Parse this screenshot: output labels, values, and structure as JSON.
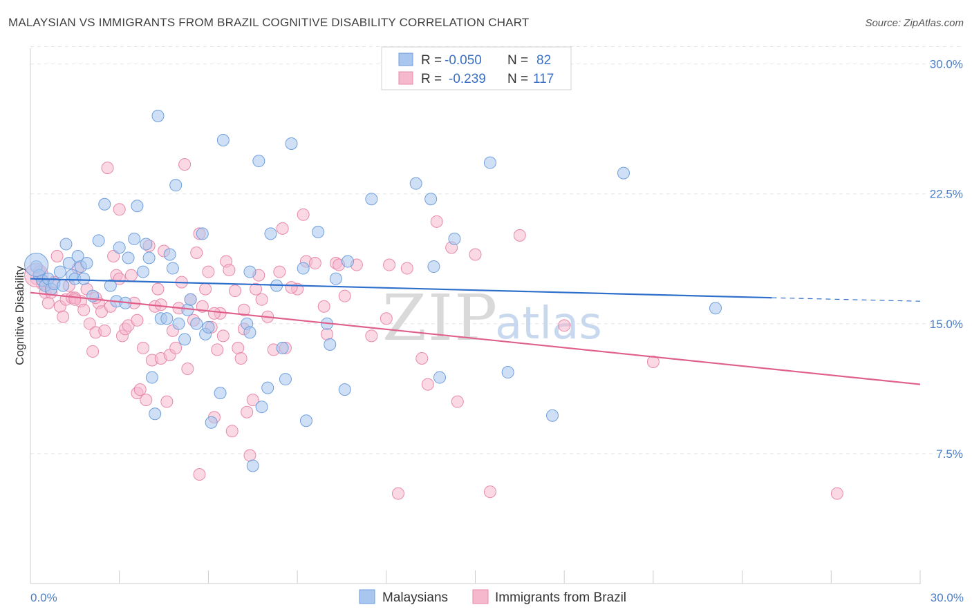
{
  "chart_data": {
    "type": "scatter",
    "title": "MALAYSIAN VS IMMIGRANTS FROM BRAZIL COGNITIVE DISABILITY CORRELATION CHART",
    "source": "Source: ZipAtlas.com",
    "ylabel": "Cognitive Disability",
    "xlim": [
      0,
      30
    ],
    "ylim": [
      0,
      31.5
    ],
    "y_ticks": [
      {
        "value": 7.5,
        "label": "7.5%"
      },
      {
        "value": 15.0,
        "label": "15.0%"
      },
      {
        "value": 22.5,
        "label": "22.5%"
      },
      {
        "value": 30.0,
        "label": "30.0%"
      }
    ],
    "x_tick_labels": {
      "min": "0.0%",
      "max": "30.0%"
    },
    "legend": {
      "series1": {
        "r_label": "R =",
        "r_value": "-0.050",
        "n_label": "N =",
        "n_value": "82"
      },
      "series2": {
        "r_label": "R =",
        "r_value": "-0.239",
        "n_label": "N =",
        "n_value": "117"
      }
    },
    "colors": {
      "blue_fill": "#a8c6ee",
      "blue_stroke": "#6f9fdc",
      "blue_line": "#2f6fcc",
      "pink_fill": "#f5b8cd",
      "pink_stroke": "#e889aa",
      "pink_line": "#e0608c"
    },
    "series": [
      {
        "name": "Malaysians",
        "trend": {
          "x0": 0,
          "y0": 17.6,
          "x1": 25,
          "y1": 16.5,
          "dash_to": 30,
          "dash_y": 16.3
        },
        "points": [
          [
            0.2,
            18.3
          ],
          [
            0.3,
            17.8
          ],
          [
            0.4,
            17.5
          ],
          [
            0.5,
            17.2
          ],
          [
            0.6,
            17.6
          ],
          [
            0.7,
            17.0
          ],
          [
            0.8,
            17.3
          ],
          [
            1.0,
            18.0
          ],
          [
            1.1,
            17.2
          ],
          [
            1.2,
            19.6
          ],
          [
            1.3,
            18.5
          ],
          [
            1.4,
            17.8
          ],
          [
            1.5,
            17.6
          ],
          [
            1.6,
            18.9
          ],
          [
            1.7,
            18.3
          ],
          [
            1.8,
            17.6
          ],
          [
            1.9,
            18.5
          ],
          [
            2.1,
            16.6
          ],
          [
            2.3,
            19.8
          ],
          [
            2.5,
            21.9
          ],
          [
            2.7,
            17.2
          ],
          [
            2.9,
            16.3
          ],
          [
            3.0,
            19.4
          ],
          [
            3.3,
            18.8
          ],
          [
            3.2,
            16.2
          ],
          [
            3.5,
            19.9
          ],
          [
            3.6,
            21.8
          ],
          [
            3.8,
            18.0
          ],
          [
            3.9,
            19.6
          ],
          [
            4.0,
            18.8
          ],
          [
            4.1,
            11.9
          ],
          [
            4.2,
            9.8
          ],
          [
            4.3,
            27.0
          ],
          [
            4.4,
            15.3
          ],
          [
            4.6,
            15.3
          ],
          [
            4.7,
            19.0
          ],
          [
            4.8,
            18.2
          ],
          [
            4.9,
            23.0
          ],
          [
            5.0,
            15.0
          ],
          [
            5.2,
            14.1
          ],
          [
            5.3,
            15.8
          ],
          [
            5.4,
            16.4
          ],
          [
            5.6,
            15.0
          ],
          [
            5.8,
            20.2
          ],
          [
            5.9,
            14.4
          ],
          [
            6.0,
            14.8
          ],
          [
            6.1,
            9.3
          ],
          [
            6.4,
            11.0
          ],
          [
            6.5,
            25.6
          ],
          [
            7.3,
            15.0
          ],
          [
            7.4,
            14.5
          ],
          [
            7.4,
            18.0
          ],
          [
            7.5,
            6.8
          ],
          [
            7.7,
            24.4
          ],
          [
            7.8,
            10.2
          ],
          [
            8.0,
            11.3
          ],
          [
            8.1,
            20.2
          ],
          [
            8.3,
            17.2
          ],
          [
            8.5,
            13.6
          ],
          [
            8.6,
            11.8
          ],
          [
            8.8,
            25.4
          ],
          [
            9.2,
            18.2
          ],
          [
            9.3,
            9.4
          ],
          [
            9.7,
            20.3
          ],
          [
            10.0,
            15.0
          ],
          [
            10.1,
            13.8
          ],
          [
            10.3,
            17.6
          ],
          [
            10.6,
            11.2
          ],
          [
            10.7,
            18.6
          ],
          [
            11.5,
            22.2
          ],
          [
            13.0,
            23.1
          ],
          [
            13.5,
            22.2
          ],
          [
            13.6,
            18.3
          ],
          [
            13.8,
            11.9
          ],
          [
            14.3,
            19.9
          ],
          [
            15.5,
            24.3
          ],
          [
            16.1,
            12.2
          ],
          [
            17.6,
            9.7
          ],
          [
            20.0,
            23.7
          ],
          [
            23.1,
            15.9
          ]
        ],
        "large_points": [
          [
            0.2,
            18.4
          ]
        ]
      },
      {
        "name": "Immigrants from Brazil",
        "trend": {
          "x0": 0,
          "y0": 16.8,
          "x1": 30,
          "y1": 11.5
        },
        "points": [
          [
            0.2,
            17.6
          ],
          [
            0.3,
            18.0
          ],
          [
            0.4,
            17.3
          ],
          [
            0.5,
            16.8
          ],
          [
            0.6,
            16.2
          ],
          [
            0.7,
            16.8
          ],
          [
            0.8,
            17.4
          ],
          [
            0.9,
            18.9
          ],
          [
            1.0,
            16.0
          ],
          [
            1.1,
            15.4
          ],
          [
            1.2,
            16.4
          ],
          [
            1.3,
            17.2
          ],
          [
            1.4,
            16.5
          ],
          [
            1.5,
            16.5
          ],
          [
            1.6,
            18.2
          ],
          [
            1.7,
            16.3
          ],
          [
            1.8,
            15.8
          ],
          [
            1.9,
            17.0
          ],
          [
            2.0,
            15.0
          ],
          [
            2.1,
            13.4
          ],
          [
            2.2,
            14.5
          ],
          [
            2.3,
            16.2
          ],
          [
            2.4,
            15.7
          ],
          [
            2.5,
            14.6
          ],
          [
            2.6,
            24.0
          ],
          [
            2.7,
            16.0
          ],
          [
            2.8,
            18.9
          ],
          [
            2.9,
            17.8
          ],
          [
            3.0,
            21.6
          ],
          [
            3.1,
            14.3
          ],
          [
            3.2,
            14.7
          ],
          [
            3.3,
            14.9
          ],
          [
            3.4,
            17.8
          ],
          [
            3.5,
            16.2
          ],
          [
            3.6,
            11.0
          ],
          [
            3.7,
            11.2
          ],
          [
            3.8,
            13.6
          ],
          [
            3.9,
            10.6
          ],
          [
            4.0,
            19.5
          ],
          [
            4.1,
            12.9
          ],
          [
            4.2,
            16.0
          ],
          [
            4.3,
            17.0
          ],
          [
            4.4,
            13.0
          ],
          [
            4.5,
            19.2
          ],
          [
            4.6,
            10.5
          ],
          [
            4.7,
            13.2
          ],
          [
            4.8,
            14.6
          ],
          [
            4.9,
            13.6
          ],
          [
            5.0,
            15.9
          ],
          [
            5.1,
            17.4
          ],
          [
            5.2,
            24.2
          ],
          [
            5.3,
            12.4
          ],
          [
            5.4,
            16.4
          ],
          [
            5.5,
            15.2
          ],
          [
            5.6,
            19.1
          ],
          [
            5.7,
            6.3
          ],
          [
            5.8,
            16.0
          ],
          [
            5.9,
            17.0
          ],
          [
            6.0,
            18.0
          ],
          [
            6.1,
            14.8
          ],
          [
            6.2,
            9.6
          ],
          [
            6.3,
            13.5
          ],
          [
            6.4,
            15.6
          ],
          [
            6.5,
            14.3
          ],
          [
            6.6,
            18.6
          ],
          [
            6.7,
            18.1
          ],
          [
            6.8,
            8.8
          ],
          [
            6.9,
            16.9
          ],
          [
            7.0,
            13.6
          ],
          [
            7.1,
            13.0
          ],
          [
            7.2,
            14.7
          ],
          [
            7.3,
            9.9
          ],
          [
            7.4,
            7.4
          ],
          [
            7.5,
            10.6
          ],
          [
            7.6,
            17.0
          ],
          [
            7.7,
            17.8
          ],
          [
            7.8,
            16.4
          ],
          [
            8.0,
            15.4
          ],
          [
            8.2,
            13.5
          ],
          [
            8.4,
            18.0
          ],
          [
            8.5,
            20.5
          ],
          [
            8.6,
            13.6
          ],
          [
            9.0,
            17.0
          ],
          [
            9.2,
            21.3
          ],
          [
            9.3,
            18.6
          ],
          [
            9.6,
            18.5
          ],
          [
            9.9,
            16.0
          ],
          [
            10.0,
            14.4
          ],
          [
            10.3,
            18.5
          ],
          [
            10.4,
            18.4
          ],
          [
            10.6,
            16.6
          ],
          [
            11.0,
            18.4
          ],
          [
            11.5,
            14.3
          ],
          [
            12.0,
            15.3
          ],
          [
            12.1,
            18.4
          ],
          [
            12.4,
            5.2
          ],
          [
            12.7,
            18.2
          ],
          [
            13.2,
            13.0
          ],
          [
            13.4,
            11.5
          ],
          [
            13.7,
            20.9
          ],
          [
            14.2,
            19.4
          ],
          [
            14.4,
            10.5
          ],
          [
            15.0,
            19.0
          ],
          [
            15.5,
            5.3
          ],
          [
            16.5,
            20.1
          ],
          [
            18.0,
            14.9
          ],
          [
            21.0,
            12.8
          ],
          [
            27.2,
            5.2
          ],
          [
            1.5,
            16.4
          ],
          [
            2.2,
            16.5
          ],
          [
            3.6,
            15.2
          ],
          [
            4.4,
            16.1
          ],
          [
            5.7,
            20.2
          ],
          [
            6.2,
            15.6
          ],
          [
            7.2,
            15.8
          ],
          [
            8.8,
            17.1
          ],
          [
            3.0,
            17.6
          ]
        ],
        "large_points": [
          [
            0.2,
            17.8
          ]
        ]
      }
    ]
  }
}
